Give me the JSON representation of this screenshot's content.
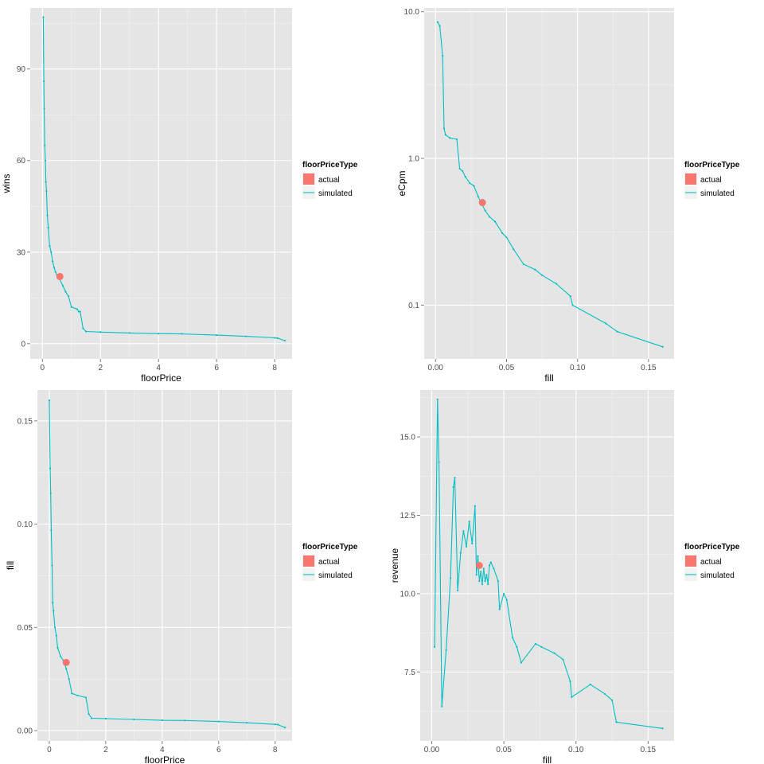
{
  "chart_data": [
    {
      "type": "line",
      "xlabel": "floorPrice",
      "ylabel": "wins",
      "xlim": [
        -0.42,
        8.6
      ],
      "ylim": [
        -5,
        110
      ],
      "x_ticks": [
        0,
        2,
        4,
        6,
        8
      ],
      "x_tick_labels": [
        "0",
        "2",
        "4",
        "6",
        "8"
      ],
      "y_ticks": [
        0,
        30,
        60,
        90
      ],
      "y_tick_labels": [
        "0",
        "30",
        "60",
        "90"
      ],
      "y_scale": "linear",
      "grid": true,
      "legend": {
        "title": "floorPriceType",
        "position": "right",
        "entries": [
          {
            "label": "actual",
            "key": "point",
            "color": "#F8766D"
          },
          {
            "label": "simulated",
            "key": "line",
            "color": "#00BFC4"
          }
        ]
      },
      "series": [
        {
          "name": "simulated",
          "color": "#00BFC4",
          "x": [
            0.03,
            0.05,
            0.06,
            0.08,
            0.1,
            0.12,
            0.14,
            0.17,
            0.2,
            0.25,
            0.3,
            0.35,
            0.4,
            0.45,
            0.5,
            0.55,
            0.6,
            0.7,
            0.8,
            0.9,
            1.0,
            1.2,
            1.25,
            1.3,
            1.4,
            1.5,
            2.0,
            3.0,
            4.0,
            4.8,
            6.0,
            7.0,
            8.0,
            8.1,
            8.35
          ],
          "y": [
            107,
            86,
            77,
            65,
            60,
            53,
            50,
            42,
            38,
            32,
            30,
            27,
            25,
            23.5,
            22.5,
            21.5,
            21,
            19,
            17,
            15.5,
            12,
            11.3,
            10.5,
            10.5,
            5,
            4,
            3.8,
            3.5,
            3.3,
            3.2,
            2.8,
            2.4,
            1.9,
            1.8,
            1.0
          ]
        },
        {
          "name": "actual",
          "color": "#F8766D",
          "x": [
            0.6
          ],
          "y": [
            22
          ]
        }
      ]
    },
    {
      "type": "line",
      "xlabel": "fill",
      "ylabel": "eCpm",
      "xlim": [
        -0.008,
        0.168
      ],
      "ylim": [
        0.043,
        10.6
      ],
      "x_ticks": [
        0.0,
        0.05,
        0.1,
        0.15
      ],
      "x_tick_labels": [
        "0.00",
        "0.05",
        "0.10",
        "0.15"
      ],
      "y_ticks": [
        0.1,
        1.0,
        10.0
      ],
      "y_tick_labels": [
        "0.1",
        "1.0",
        "10.0"
      ],
      "y_scale": "log10",
      "grid": true,
      "legend": {
        "title": "floorPriceType",
        "position": "right",
        "entries": [
          {
            "label": "actual",
            "key": "point",
            "color": "#F8766D"
          },
          {
            "label": "simulated",
            "key": "line",
            "color": "#00BFC4"
          }
        ]
      },
      "series": [
        {
          "name": "simulated",
          "color": "#00BFC4",
          "x": [
            0.0015,
            0.003,
            0.005,
            0.006,
            0.007,
            0.01,
            0.015,
            0.017,
            0.019,
            0.021,
            0.024,
            0.027,
            0.03,
            0.032,
            0.035,
            0.038,
            0.042,
            0.047,
            0.05,
            0.055,
            0.062,
            0.07,
            0.075,
            0.085,
            0.095,
            0.0965,
            0.12,
            0.128,
            0.16
          ],
          "y": [
            8.5,
            8.0,
            5.0,
            1.6,
            1.45,
            1.38,
            1.35,
            0.85,
            0.82,
            0.75,
            0.68,
            0.65,
            0.55,
            0.5,
            0.44,
            0.4,
            0.37,
            0.31,
            0.29,
            0.24,
            0.19,
            0.175,
            0.16,
            0.14,
            0.115,
            0.1,
            0.075,
            0.066,
            0.052
          ]
        },
        {
          "name": "actual",
          "color": "#F8766D",
          "x": [
            0.033
          ],
          "y": [
            0.5
          ]
        }
      ]
    },
    {
      "type": "line",
      "xlabel": "floorPrice",
      "ylabel": "fill",
      "xlim": [
        -0.42,
        8.6
      ],
      "ylim": [
        -0.005,
        0.165
      ],
      "x_ticks": [
        0,
        2,
        4,
        6,
        8
      ],
      "x_tick_labels": [
        "0",
        "2",
        "4",
        "6",
        "8"
      ],
      "y_ticks": [
        0.0,
        0.05,
        0.1,
        0.15
      ],
      "y_tick_labels": [
        "0.00",
        "0.05",
        "0.10",
        "0.15"
      ],
      "y_scale": "linear",
      "grid": true,
      "legend": {
        "title": "floorPriceType",
        "position": "right",
        "entries": [
          {
            "label": "actual",
            "key": "point",
            "color": "#F8766D"
          },
          {
            "label": "simulated",
            "key": "line",
            "color": "#00BFC4"
          }
        ]
      },
      "series": [
        {
          "name": "simulated",
          "color": "#00BFC4",
          "x": [
            0.0,
            0.03,
            0.05,
            0.07,
            0.1,
            0.12,
            0.15,
            0.2,
            0.25,
            0.3,
            0.4,
            0.5,
            0.6,
            0.7,
            0.8,
            1.0,
            1.3,
            1.4,
            1.5,
            2.0,
            3.0,
            4.0,
            4.8,
            6.0,
            7.0,
            8.0,
            8.1,
            8.35
          ],
          "y": [
            0.16,
            0.127,
            0.115,
            0.097,
            0.08,
            0.062,
            0.058,
            0.05,
            0.046,
            0.04,
            0.036,
            0.034,
            0.03,
            0.025,
            0.018,
            0.017,
            0.016,
            0.008,
            0.006,
            0.0058,
            0.0054,
            0.005,
            0.0049,
            0.0044,
            0.0038,
            0.003,
            0.0029,
            0.0015
          ]
        },
        {
          "name": "actual",
          "color": "#F8766D",
          "x": [
            0.6
          ],
          "y": [
            0.033
          ]
        }
      ]
    },
    {
      "type": "line",
      "xlabel": "fill",
      "ylabel": "revenue",
      "xlim": [
        -0.008,
        0.168
      ],
      "ylim": [
        5.3,
        16.5
      ],
      "x_ticks": [
        0.0,
        0.05,
        0.1,
        0.15
      ],
      "x_tick_labels": [
        "0.00",
        "0.05",
        "0.10",
        "0.15"
      ],
      "y_ticks": [
        7.5,
        10.0,
        12.5,
        15.0
      ],
      "y_tick_labels": [
        "7.5",
        "10.0",
        "12.5",
        "15.0"
      ],
      "y_scale": "linear",
      "grid": true,
      "legend": {
        "title": "floorPriceType",
        "position": "right",
        "entries": [
          {
            "label": "actual",
            "key": "point",
            "color": "#F8766D"
          },
          {
            "label": "simulated",
            "key": "line",
            "color": "#00BFC4"
          }
        ]
      },
      "series": [
        {
          "name": "simulated",
          "color": "#00BFC4",
          "x": [
            0.002,
            0.004,
            0.005,
            0.007,
            0.01,
            0.013,
            0.015,
            0.016,
            0.018,
            0.02,
            0.022,
            0.024,
            0.026,
            0.028,
            0.03,
            0.031,
            0.032,
            0.033,
            0.034,
            0.035,
            0.036,
            0.037,
            0.038,
            0.039,
            0.04,
            0.041,
            0.043,
            0.046,
            0.047,
            0.05,
            0.052,
            0.056,
            0.059,
            0.062,
            0.072,
            0.076,
            0.085,
            0.091,
            0.096,
            0.097,
            0.11,
            0.12,
            0.125,
            0.128,
            0.16
          ],
          "y": [
            8.3,
            16.2,
            14.2,
            6.4,
            8.2,
            10.5,
            13.4,
            13.7,
            10.1,
            11.3,
            12.0,
            11.5,
            12.3,
            11.6,
            12.8,
            10.6,
            11.2,
            10.4,
            10.7,
            10.3,
            10.8,
            10.4,
            10.6,
            10.3,
            10.9,
            11.0,
            10.8,
            10.4,
            9.5,
            10.0,
            9.8,
            8.6,
            8.3,
            7.8,
            8.4,
            8.3,
            8.1,
            7.9,
            7.2,
            6.7,
            7.1,
            6.8,
            6.6,
            5.9,
            5.7
          ]
        },
        {
          "name": "actual",
          "color": "#F8766D",
          "x": [
            0.033
          ],
          "y": [
            10.9
          ]
        }
      ]
    }
  ]
}
